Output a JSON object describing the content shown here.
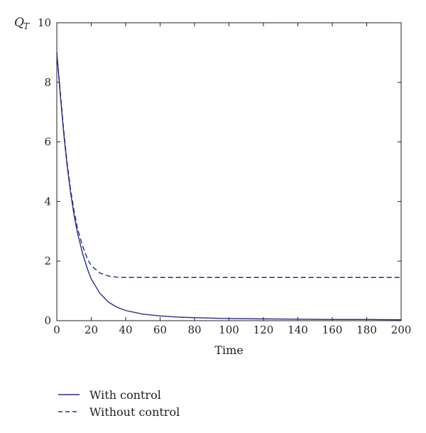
{
  "chart_data": {
    "type": "line",
    "xlabel": "Time",
    "ylabel": "Q",
    "ylabel_subscript": "T",
    "xlim": [
      0,
      200
    ],
    "ylim": [
      0,
      10
    ],
    "x_ticks": [
      "0",
      "20",
      "40",
      "60",
      "80",
      "100",
      "120",
      "140",
      "160",
      "180",
      "200"
    ],
    "y_ticks": [
      "0",
      "2",
      "4",
      "6",
      "8",
      "10"
    ],
    "grid": false,
    "legend_position": "bottom-left, below plot",
    "line_color": "#2b2b8c",
    "series": [
      {
        "name": "With control",
        "style": "solid",
        "x": [
          0,
          2,
          4,
          6,
          8,
          10,
          12,
          15,
          18,
          20,
          25,
          30,
          35,
          40,
          50,
          60,
          70,
          80,
          100,
          120,
          140,
          160,
          180,
          200
        ],
        "y": [
          9.0,
          7.6,
          6.3,
          5.2,
          4.3,
          3.55,
          2.95,
          2.25,
          1.7,
          1.4,
          0.92,
          0.62,
          0.45,
          0.34,
          0.22,
          0.16,
          0.12,
          0.1,
          0.07,
          0.06,
          0.05,
          0.04,
          0.04,
          0.03
        ]
      },
      {
        "name": "Without control",
        "style": "dashed",
        "x": [
          0,
          2,
          4,
          6,
          8,
          10,
          12,
          15,
          18,
          20,
          25,
          30,
          35,
          40,
          60,
          80,
          100,
          120,
          140,
          160,
          180,
          200
        ],
        "y": [
          9.0,
          7.7,
          6.4,
          5.3,
          4.4,
          3.7,
          3.1,
          2.5,
          2.05,
          1.85,
          1.6,
          1.5,
          1.46,
          1.45,
          1.45,
          1.45,
          1.45,
          1.45,
          1.45,
          1.45,
          1.45,
          1.45
        ]
      }
    ]
  }
}
